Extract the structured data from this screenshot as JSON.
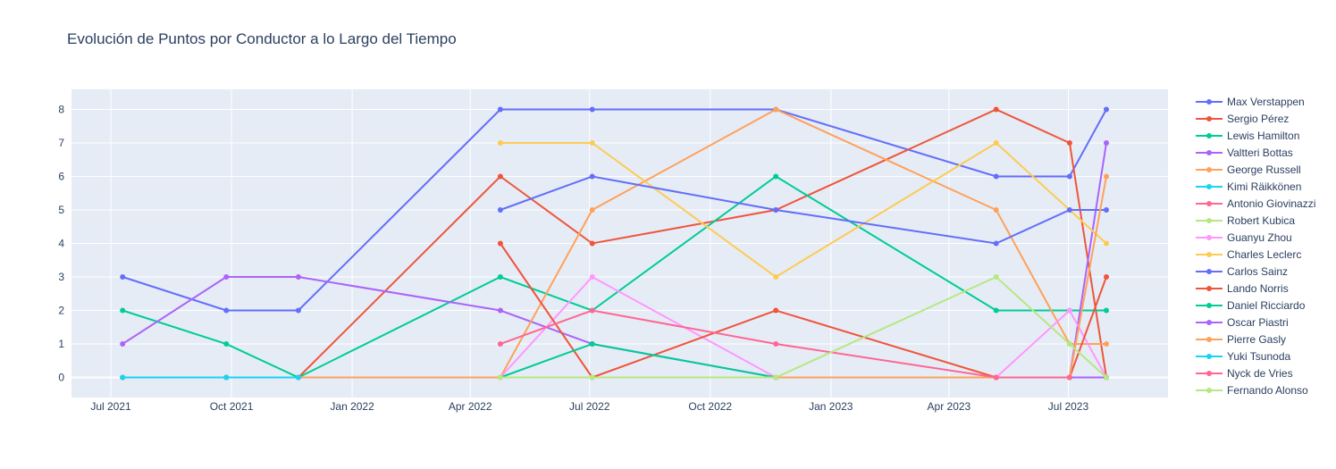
{
  "chart_data": {
    "type": "line",
    "title": "Evolución de Puntos por Conductor a lo Largo del Tiempo",
    "xlabel": "",
    "ylabel": "",
    "x_axis": {
      "type": "date",
      "range": [
        "2021-06-01",
        "2023-09-15"
      ],
      "ticks": [
        {
          "date": "2021-07-01",
          "label": "Jul 2021"
        },
        {
          "date": "2021-10-01",
          "label": "Oct 2021"
        },
        {
          "date": "2022-01-01",
          "label": "Jan 2022"
        },
        {
          "date": "2022-04-01",
          "label": "Apr 2022"
        },
        {
          "date": "2022-07-01",
          "label": "Jul 2022"
        },
        {
          "date": "2022-10-01",
          "label": "Oct 2022"
        },
        {
          "date": "2023-01-01",
          "label": "Jan 2023"
        },
        {
          "date": "2023-04-01",
          "label": "Apr 2023"
        },
        {
          "date": "2023-07-01",
          "label": "Jul 2023"
        }
      ]
    },
    "y_axis": {
      "range": [
        -0.6,
        8.6
      ],
      "ticks": [
        0,
        1,
        2,
        3,
        4,
        5,
        6,
        7,
        8
      ]
    },
    "grid": true,
    "legend_position": "right",
    "background": "#e5ecf6",
    "series": [
      {
        "name": "Max Verstappen",
        "color": "#636efa",
        "points": [
          [
            "2021-07-10",
            3
          ],
          [
            "2021-09-27",
            2
          ],
          [
            "2021-11-21",
            2
          ],
          [
            "2022-04-24",
            8
          ],
          [
            "2022-07-03",
            8
          ],
          [
            "2022-11-20",
            8
          ],
          [
            "2023-05-07",
            6
          ],
          [
            "2023-07-02",
            6
          ],
          [
            "2023-07-30",
            8
          ]
        ]
      },
      {
        "name": "Sergio Pérez",
        "color": "#EF553B",
        "points": [
          [
            "2021-07-10",
            0
          ],
          [
            "2021-09-27",
            0
          ],
          [
            "2021-11-21",
            0
          ],
          [
            "2022-04-24",
            6
          ],
          [
            "2022-07-03",
            4
          ],
          [
            "2022-11-20",
            5
          ],
          [
            "2023-05-07",
            8
          ],
          [
            "2023-07-02",
            7
          ],
          [
            "2023-07-30",
            0
          ]
        ]
      },
      {
        "name": "Lewis Hamilton",
        "color": "#00cc96",
        "points": [
          [
            "2021-07-10",
            2
          ],
          [
            "2021-09-27",
            1
          ],
          [
            "2021-11-21",
            0
          ],
          [
            "2022-04-24",
            3
          ],
          [
            "2022-07-03",
            2
          ],
          [
            "2022-11-20",
            6
          ],
          [
            "2023-05-07",
            2
          ],
          [
            "2023-07-02",
            2
          ],
          [
            "2023-07-30",
            2
          ]
        ]
      },
      {
        "name": "Valtteri Bottas",
        "color": "#ab63fa",
        "points": [
          [
            "2021-07-10",
            1
          ],
          [
            "2021-09-27",
            3
          ],
          [
            "2021-11-21",
            3
          ],
          [
            "2022-04-24",
            2
          ],
          [
            "2022-07-03",
            1
          ],
          [
            "2022-11-20",
            0
          ],
          [
            "2023-05-07",
            0
          ],
          [
            "2023-07-02",
            0
          ],
          [
            "2023-07-30",
            7
          ]
        ]
      },
      {
        "name": "George Russell",
        "color": "#FFA15A",
        "points": [
          [
            "2021-07-10",
            0
          ],
          [
            "2021-09-27",
            0
          ],
          [
            "2021-11-21",
            0
          ],
          [
            "2022-04-24",
            0
          ],
          [
            "2022-07-03",
            5
          ],
          [
            "2022-11-20",
            8
          ],
          [
            "2023-05-07",
            5
          ],
          [
            "2023-07-02",
            1
          ],
          [
            "2023-07-30",
            1
          ]
        ]
      },
      {
        "name": "Kimi Räikkönen",
        "color": "#19d3f3",
        "points": [
          [
            "2021-07-10",
            0
          ],
          [
            "2021-09-27",
            0
          ],
          [
            "2021-11-21",
            0
          ]
        ]
      },
      {
        "name": "Antonio Giovinazzi",
        "color": "#FF6692",
        "points": [
          [
            "2021-07-10",
            0
          ],
          [
            "2021-09-27",
            0
          ],
          [
            "2021-11-21",
            0
          ]
        ]
      },
      {
        "name": "Robert Kubica",
        "color": "#B6E880",
        "points": [
          [
            "2021-07-10",
            0
          ],
          [
            "2021-09-27",
            0
          ]
        ]
      },
      {
        "name": "Guanyu Zhou",
        "color": "#FF97FF",
        "points": [
          [
            "2022-04-24",
            0
          ],
          [
            "2022-07-03",
            3
          ],
          [
            "2022-11-20",
            0
          ],
          [
            "2023-05-07",
            0
          ],
          [
            "2023-07-02",
            2
          ],
          [
            "2023-07-30",
            0
          ]
        ]
      },
      {
        "name": "Charles Leclerc",
        "color": "#FECB52",
        "points": [
          [
            "2022-04-24",
            7
          ],
          [
            "2022-07-03",
            7
          ],
          [
            "2022-11-20",
            3
          ],
          [
            "2023-05-07",
            7
          ],
          [
            "2023-07-02",
            5
          ],
          [
            "2023-07-30",
            4
          ]
        ]
      },
      {
        "name": "Carlos Sainz",
        "color": "#636efa",
        "points": [
          [
            "2022-04-24",
            5
          ],
          [
            "2022-07-03",
            6
          ],
          [
            "2022-11-20",
            5
          ],
          [
            "2023-05-07",
            4
          ],
          [
            "2023-07-02",
            5
          ],
          [
            "2023-07-30",
            5
          ]
        ]
      },
      {
        "name": "Lando Norris",
        "color": "#EF553B",
        "points": [
          [
            "2022-04-24",
            4
          ],
          [
            "2022-07-03",
            0
          ],
          [
            "2022-11-20",
            2
          ],
          [
            "2023-05-07",
            0
          ],
          [
            "2023-07-02",
            0
          ],
          [
            "2023-07-30",
            3
          ]
        ]
      },
      {
        "name": "Daniel Ricciardo",
        "color": "#00cc96",
        "points": [
          [
            "2022-04-24",
            0
          ],
          [
            "2022-07-03",
            1
          ],
          [
            "2022-11-20",
            0
          ],
          [
            "2023-07-30",
            0
          ]
        ]
      },
      {
        "name": "Oscar Piastri",
        "color": "#ab63fa",
        "points": [
          [
            "2023-05-07",
            0
          ],
          [
            "2023-07-02",
            0
          ],
          [
            "2023-07-30",
            0
          ]
        ]
      },
      {
        "name": "Pierre Gasly",
        "color": "#FFA15A",
        "points": [
          [
            "2021-07-10",
            0
          ],
          [
            "2021-09-27",
            0
          ],
          [
            "2021-11-21",
            0
          ],
          [
            "2022-04-24",
            0
          ],
          [
            "2022-07-03",
            0
          ],
          [
            "2022-11-20",
            0
          ],
          [
            "2023-05-07",
            0
          ],
          [
            "2023-07-02",
            0
          ],
          [
            "2023-07-30",
            6
          ]
        ]
      },
      {
        "name": "Yuki Tsunoda",
        "color": "#19d3f3",
        "points": [
          [
            "2021-07-10",
            0
          ],
          [
            "2021-09-27",
            0
          ],
          [
            "2021-11-21",
            0
          ]
        ]
      },
      {
        "name": "Nyck de Vries",
        "color": "#FF6692",
        "points": [
          [
            "2022-04-24",
            1
          ],
          [
            "2022-07-03",
            2
          ],
          [
            "2022-11-20",
            1
          ],
          [
            "2023-05-07",
            0
          ],
          [
            "2023-07-02",
            0
          ]
        ]
      },
      {
        "name": "Fernando Alonso",
        "color": "#B6E880",
        "points": [
          [
            "2022-04-24",
            0
          ],
          [
            "2022-07-03",
            0
          ],
          [
            "2022-11-20",
            0
          ],
          [
            "2023-05-07",
            3
          ],
          [
            "2023-07-02",
            1
          ],
          [
            "2023-07-30",
            0
          ]
        ]
      }
    ]
  }
}
